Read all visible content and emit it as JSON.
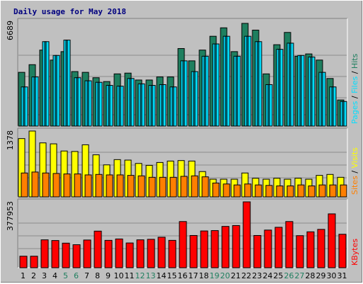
{
  "chart_data": {
    "type": "bar",
    "title": "Daily usage for May 2018",
    "categories": [
      "1",
      "2",
      "3",
      "4",
      "5",
      "6",
      "7",
      "8",
      "9",
      "10",
      "11",
      "12",
      "13",
      "14",
      "15",
      "16",
      "17",
      "18",
      "19",
      "20",
      "21",
      "22",
      "23",
      "24",
      "25",
      "26",
      "27",
      "28",
      "29",
      "30",
      "31"
    ],
    "weekend_days": [
      "5",
      "6",
      "12",
      "13",
      "19",
      "20",
      "26",
      "27"
    ],
    "grid": true,
    "panels": [
      {
        "name": "hits-files-pages",
        "ymax_label": "6689",
        "ymax": 6689,
        "side_labels": [
          "Pages",
          "Files",
          "Hits"
        ],
        "series": [
          {
            "name": "Hits",
            "color": "#1f7f5f",
            "values": [
              3500,
              4000,
              4950,
              4300,
              4850,
              3550,
              3500,
              3150,
              2900,
              3400,
              3450,
              3000,
              3000,
              3200,
              3200,
              5050,
              4250,
              4950,
              5850,
              6400,
              4850,
              6689,
              6250,
              3400,
              5300,
              6100,
              4550,
              4700,
              4300,
              3100,
              1700
            ]
          },
          {
            "name": "Files",
            "color": "#00dfff",
            "values": [
              2550,
              3200,
              5500,
              4600,
              5600,
              3150,
              2950,
              2850,
              2650,
              2600,
              3100,
              2750,
              2650,
              2700,
              2550,
              4250,
              3550,
              4550,
              5350,
              5850,
              4550,
              5850,
              5500,
              2700,
              5000,
              5400,
              4600,
              4500,
              3500,
              2550,
              1600
            ]
          },
          {
            "name": "Pages",
            "color": "#0000ff",
            "values": [
              2550,
              3200,
              5500,
              4600,
              5600,
              3150,
              2950,
              2850,
              2650,
              2600,
              3100,
              2750,
              2650,
              2700,
              2550,
              4250,
              3550,
              4550,
              5350,
              5850,
              4550,
              5850,
              5500,
              2700,
              5000,
              5400,
              4600,
              4500,
              3500,
              2550,
              1600
            ]
          }
        ]
      },
      {
        "name": "visits-sites",
        "ymax_label": "1378",
        "ymax": 1378,
        "side_labels": [
          "Sites",
          "Visits"
        ],
        "series": [
          {
            "name": "Visits",
            "color": "#ffff00",
            "values": [
              1220,
              1378,
              1130,
              1110,
              960,
              950,
              1090,
              880,
              670,
              780,
              770,
              700,
              660,
              720,
              750,
              760,
              750,
              530,
              370,
              370,
              370,
              500,
              390,
              370,
              390,
              370,
              390,
              370,
              450,
              470,
              410
            ]
          },
          {
            "name": "Sites",
            "color": "#ff7f00",
            "values": [
              500,
              520,
              500,
              490,
              480,
              480,
              460,
              470,
              460,
              460,
              450,
              440,
              410,
              410,
              410,
              430,
              440,
              420,
              290,
              270,
              250,
              270,
              250,
              240,
              230,
              230,
              250,
              230,
              250,
              250,
              250
            ]
          }
        ]
      },
      {
        "name": "kbytes",
        "ymax_label": "377953",
        "ymax": 377953,
        "side_labels": [
          "KBytes"
        ],
        "series": [
          {
            "name": "KBytes",
            "color": "#ff0000",
            "values": [
              66000,
              66000,
              160000,
              156000,
              141000,
              132000,
              159000,
              210000,
              157000,
              165000,
              142000,
              160000,
              163000,
              175000,
              157000,
              265000,
              185000,
              211000,
              213000,
              237000,
              242000,
              377953,
              185000,
              216000,
              232000,
              265000,
              184000,
              206000,
              220000,
              309000,
              192000
            ]
          }
        ]
      }
    ]
  }
}
